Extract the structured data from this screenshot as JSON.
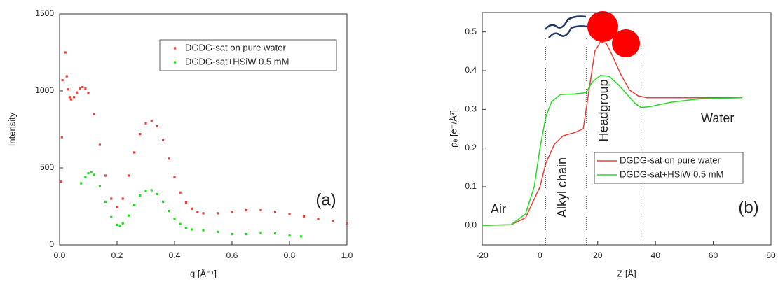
{
  "chart_data": [
    {
      "type": "scatter",
      "xlabel": "q [Å⁻¹]",
      "ylabel": "Intensity",
      "xlim": [
        0,
        1
      ],
      "ylim": [
        0,
        1500
      ],
      "xticks": [
        {
          "value": 0,
          "label": "0.0"
        },
        0.2,
        0.4,
        0.6,
        0.8,
        {
          "value": 1,
          "label": "1.0"
        }
      ],
      "yticks": [
        0,
        500,
        1000,
        1500
      ],
      "legend": "upper right",
      "annotations": [
        "(a)"
      ],
      "series": [
        {
          "name": "DGDG-sat on pure water",
          "color": "#e8413c",
          "x": [
            0.005,
            0.008,
            0.01,
            0.02,
            0.025,
            0.03,
            0.035,
            0.04,
            0.05,
            0.06,
            0.07,
            0.08,
            0.09,
            0.1,
            0.12,
            0.14,
            0.16,
            0.18,
            0.2,
            0.22,
            0.24,
            0.26,
            0.28,
            0.3,
            0.32,
            0.34,
            0.36,
            0.38,
            0.4,
            0.42,
            0.44,
            0.46,
            0.48,
            0.5,
            0.55,
            0.6,
            0.65,
            0.7,
            0.75,
            0.8,
            0.85,
            0.9,
            0.95,
            1.0
          ],
          "values": [
            410,
            700,
            1070,
            1250,
            1095,
            1010,
            960,
            945,
            960,
            990,
            1015,
            1025,
            1015,
            985,
            850,
            650,
            450,
            300,
            245,
            300,
            450,
            600,
            720,
            790,
            805,
            770,
            680,
            560,
            440,
            340,
            275,
            235,
            215,
            205,
            205,
            215,
            225,
            225,
            215,
            200,
            185,
            170,
            155,
            140
          ]
        },
        {
          "name": "DGDG-sat+HSiW 0.5 mM",
          "color": "#22dd22",
          "x": [
            0.075,
            0.09,
            0.1,
            0.11,
            0.12,
            0.14,
            0.16,
            0.18,
            0.2,
            0.21,
            0.22,
            0.24,
            0.26,
            0.28,
            0.3,
            0.32,
            0.34,
            0.36,
            0.38,
            0.4,
            0.42,
            0.44,
            0.46,
            0.5,
            0.55,
            0.6,
            0.65,
            0.7,
            0.75,
            0.8,
            0.84
          ],
          "values": [
            400,
            440,
            465,
            470,
            455,
            380,
            280,
            180,
            130,
            125,
            140,
            190,
            260,
            320,
            350,
            355,
            330,
            280,
            220,
            170,
            135,
            110,
            100,
            95,
            85,
            70,
            70,
            80,
            75,
            60,
            55
          ]
        }
      ]
    },
    {
      "type": "line",
      "xlabel": "Z [Å]",
      "ylabel": "ρₑ [e⁻/Å³]",
      "xlim": [
        -20,
        80
      ],
      "ylim": [
        -0.05,
        0.55
      ],
      "xticks": [
        -20,
        0,
        20,
        40,
        60,
        80
      ],
      "yticks": [
        {
          "value": 0,
          "label": "0.0"
        },
        0.1,
        0.2,
        0.3,
        0.4,
        0.5
      ],
      "legend": "center right",
      "vlines": [
        2,
        16,
        35
      ],
      "annotations": [
        "Air",
        "Alkyl chain",
        "Headgroup",
        "Water",
        "(b)"
      ],
      "series": [
        {
          "name": "DGDG-sat on pure water",
          "color": "#e8413c",
          "x": [
            -20,
            -10,
            -5,
            0,
            2,
            5,
            8,
            12,
            15,
            17,
            19,
            21,
            23,
            25,
            28,
            31,
            34,
            37,
            50,
            70
          ],
          "values": [
            0,
            0.002,
            0.02,
            0.1,
            0.16,
            0.21,
            0.232,
            0.24,
            0.25,
            0.35,
            0.45,
            0.475,
            0.47,
            0.44,
            0.39,
            0.35,
            0.335,
            0.33,
            0.33,
            0.33
          ]
        },
        {
          "name": "DGDG-sat+HSiW 0.5 mM",
          "color": "#22dd22",
          "x": [
            -20,
            -10,
            -5,
            -2,
            0,
            2,
            4,
            7,
            12,
            16,
            18,
            21,
            24,
            27,
            30,
            33,
            35,
            38,
            45,
            55,
            70
          ],
          "values": [
            0,
            0.002,
            0.03,
            0.1,
            0.2,
            0.28,
            0.32,
            0.338,
            0.34,
            0.343,
            0.37,
            0.388,
            0.385,
            0.365,
            0.34,
            0.315,
            0.305,
            0.307,
            0.318,
            0.327,
            0.33
          ]
        }
      ]
    }
  ]
}
